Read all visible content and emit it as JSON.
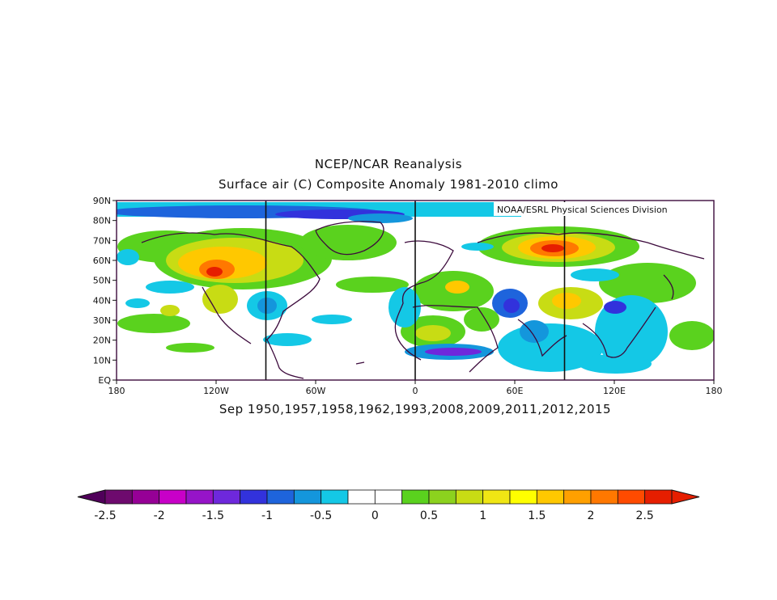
{
  "title_line1": "NCEP/NCAR Reanalysis",
  "title_line2": "Surface air (C) Composite Anomaly 1981-2010 climo",
  "subtitle": "Sep 1950,1957,1958,1962,1993,2008,2009,2011,2012,2015",
  "credit": "NOAA/ESRL Physical Sciences Division",
  "map": {
    "lon_ticks": [
      "180",
      "120W",
      "60W",
      "0",
      "60E",
      "120E",
      "180"
    ],
    "lat_ticks": [
      "EQ",
      "10N",
      "20N",
      "30N",
      "40N",
      "50N",
      "60N",
      "70N",
      "80N",
      "90N"
    ],
    "lon_range": [
      -180,
      180
    ],
    "lat_range": [
      0,
      90
    ],
    "meridian_lines_lon": [
      -90,
      0,
      90
    ]
  },
  "colorbar": {
    "tick_labels": [
      "-2.5",
      "-2",
      "-1.5",
      "-1",
      "-0.5",
      "0",
      "0.5",
      "1",
      "1.5",
      "2",
      "2.5"
    ],
    "colors": [
      "#6e0a6e",
      "#960096",
      "#c800c8",
      "#9614c8",
      "#6e28dc",
      "#3232dc",
      "#1e64dc",
      "#1496dc",
      "#14c8e6",
      "#ffffff",
      "#ffffff",
      "#5ad21e",
      "#8cd21e",
      "#c8dc14",
      "#f0e614",
      "#ffff00",
      "#ffc800",
      "#ffa000",
      "#ff7800",
      "#ff4b00",
      "#e61e00"
    ],
    "arrow_low_color": "#50005a",
    "arrow_high_color": "#e61e00"
  },
  "colors": {
    "coast": "#3c0a3c",
    "frame": "#3c0a3c"
  }
}
